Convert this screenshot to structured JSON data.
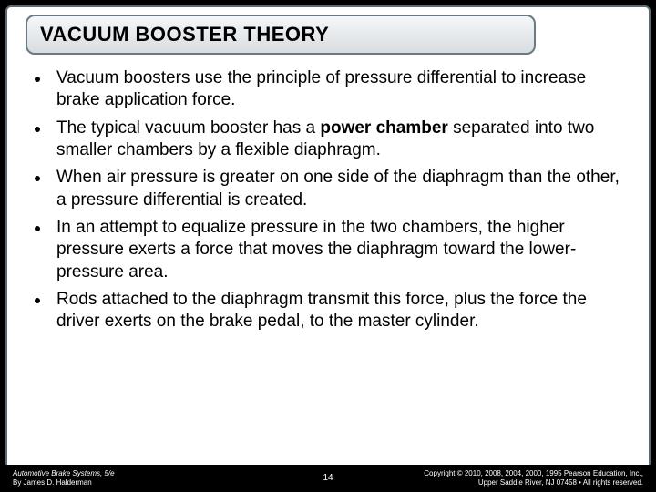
{
  "title": "VACUUM BOOSTER THEORY",
  "bullets": [
    {
      "text": "Vacuum boosters use the principle of pressure differential to increase brake application force."
    },
    {
      "text": "The typical vacuum booster has a <b>power chamber</b> separated into two smaller chambers by a flexible diaphragm."
    },
    {
      "text": "When air pressure is greater on one side of the diaphragm than the other, a pressure differential is created."
    },
    {
      "text": "In an attempt to equalize pressure in the two chambers, the higher pressure exerts a force that moves the diaphragm toward the lower-pressure area."
    },
    {
      "text": "Rods attached to the diaphragm transmit this force, plus the force the driver exerts on the brake pedal, to the master cylinder."
    }
  ],
  "footer": {
    "left_line1": "Automotive Brake Systems, 5/e",
    "left_line2": "By James D. Halderman",
    "page": "14",
    "right_line1": "Copyright © 2010, 2008, 2004, 2000, 1995 Pearson Education, Inc.,",
    "right_line2": "Upper Saddle River, NJ 07458 • All rights reserved."
  }
}
